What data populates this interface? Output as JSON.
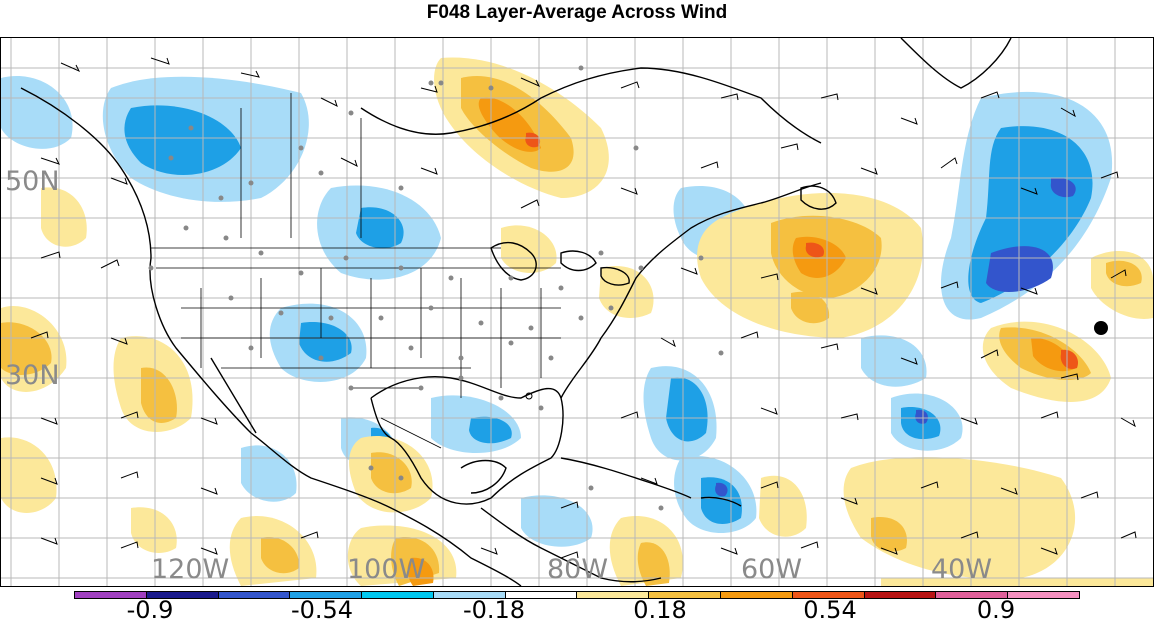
{
  "title": "F048 Layer-Average Across Wind",
  "map": {
    "lon_labels": [
      "120W",
      "100W",
      "80W",
      "60W",
      "40W"
    ],
    "lat_labels": [
      "50N",
      "30N"
    ]
  },
  "colorbar": {
    "labels": [
      "-0.9",
      "-0.54",
      "-0.18",
      "0.18",
      "0.54",
      "0.9"
    ],
    "colors": [
      "#a040c0",
      "#1a1a8c",
      "#3355cc",
      "#1ea0e6",
      "#00c8f0",
      "#a8dcf8",
      "#ffffff",
      "#fce89a",
      "#f5c040",
      "#f59a10",
      "#ee5518",
      "#b81414",
      "#e0609a",
      "#f590c0"
    ]
  }
}
